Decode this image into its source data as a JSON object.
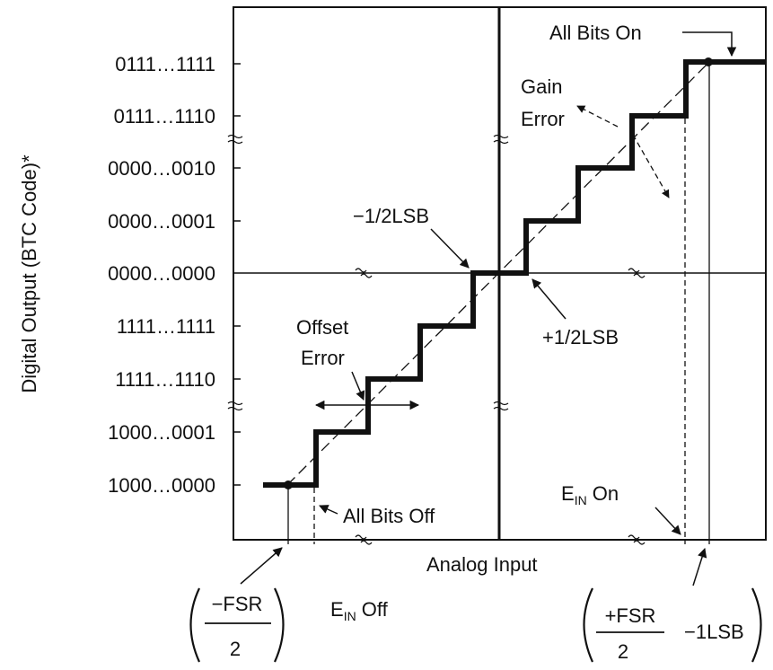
{
  "diagram": {
    "y_axis_label": "Digital Output (BTC Code)*",
    "x_axis_label": "Analog Input",
    "codes": [
      "0111…1111",
      "0111…1110",
      "0000…0010",
      "0000…0001",
      "0000…0000",
      "1111…1111",
      "1111…1110",
      "1000…0001",
      "1000…0000"
    ],
    "annotations": {
      "all_bits_on": "All Bits On",
      "gain_error_1": "Gain",
      "gain_error_2": "Error",
      "minus_half_lsb": "−1/2LSB",
      "plus_half_lsb": "+1/2LSB",
      "offset_error_1": "Offset",
      "offset_error_2": "Error",
      "all_bits_off": "All Bits Off",
      "ein_on_main": "E",
      "ein_on_sub": "IN",
      "ein_on_tail": " On",
      "ein_off_main": "E",
      "ein_off_sub": "IN",
      "ein_off_tail": " Off"
    },
    "left_formula": {
      "numerator": "−FSR",
      "denominator": "2"
    },
    "right_formula": {
      "numerator": "+FSR",
      "denominator": "2",
      "tail": "−1LSB"
    },
    "colors": {
      "line": "#111111",
      "background": "#ffffff"
    }
  }
}
